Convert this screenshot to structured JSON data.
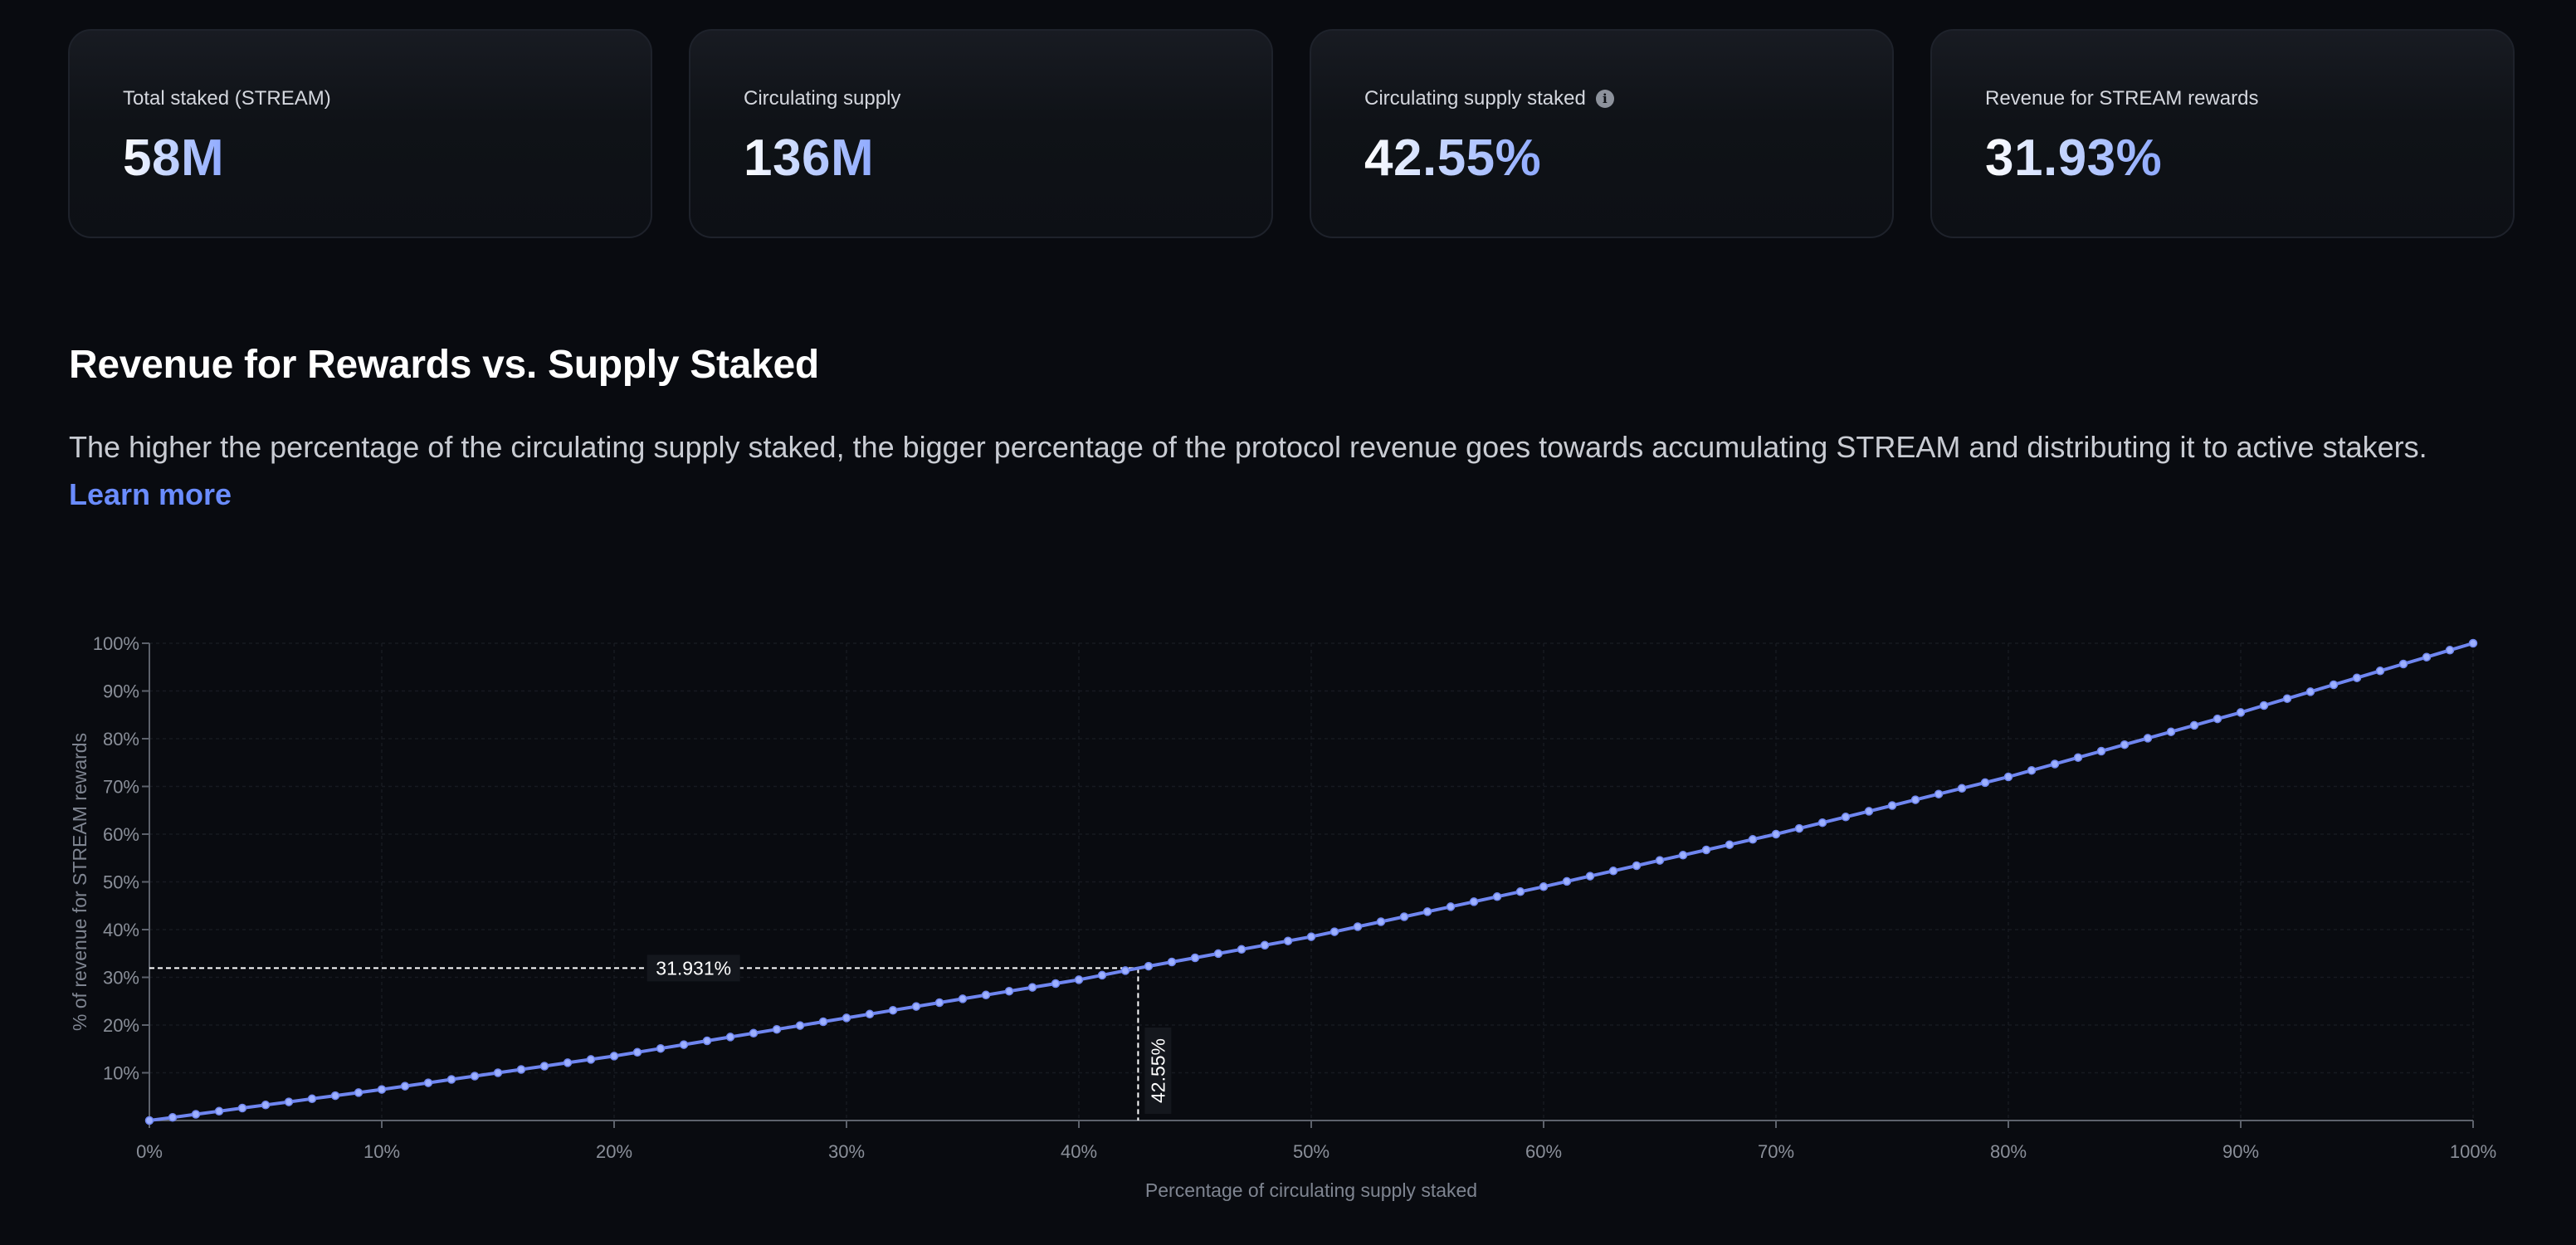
{
  "stats": [
    {
      "label": "Total staked (STREAM)",
      "value": "58M",
      "info": false
    },
    {
      "label": "Circulating supply",
      "value": "136M",
      "info": false
    },
    {
      "label": "Circulating supply staked",
      "value": "42.55%",
      "info": true
    },
    {
      "label": "Revenue for STREAM rewards",
      "value": "31.93%",
      "info": false
    }
  ],
  "section": {
    "title": "Revenue for Rewards vs. Supply Staked",
    "description": "The higher the percentage of the circulating supply staked, the bigger percentage of the protocol revenue goes towards accumulating STREAM and distributing it to active stakers.",
    "learn_more": "Learn more"
  },
  "colors": {
    "line": "#6f86f0",
    "point": "#9db0ff",
    "link": "#6a8cff"
  },
  "chart_data": {
    "type": "line",
    "title": "",
    "xlabel": "Percentage of circulating supply staked",
    "ylabel": "% of revenue for STREAM rewards",
    "xlim": [
      0,
      100
    ],
    "ylim": [
      0,
      100
    ],
    "x_ticks": [
      "0%",
      "10%",
      "20%",
      "30%",
      "40%",
      "50%",
      "60%",
      "70%",
      "80%",
      "90%",
      "100%"
    ],
    "y_ticks": [
      "10%",
      "20%",
      "30%",
      "40%",
      "50%",
      "60%",
      "70%",
      "80%",
      "90%",
      "100%"
    ],
    "grid": true,
    "series": [
      {
        "x": [
          0,
          10,
          20,
          30,
          40,
          42.55,
          50,
          60,
          70,
          80,
          90,
          100
        ],
        "y": [
          0,
          6.5,
          13.5,
          21.5,
          29.5,
          31.931,
          38.5,
          49,
          60,
          72,
          85.5,
          100
        ]
      }
    ],
    "annotations": [
      {
        "axis": "y",
        "value": 31.931,
        "label": "31.931%"
      },
      {
        "axis": "x",
        "value": 42.55,
        "label": "42.55%"
      }
    ]
  }
}
